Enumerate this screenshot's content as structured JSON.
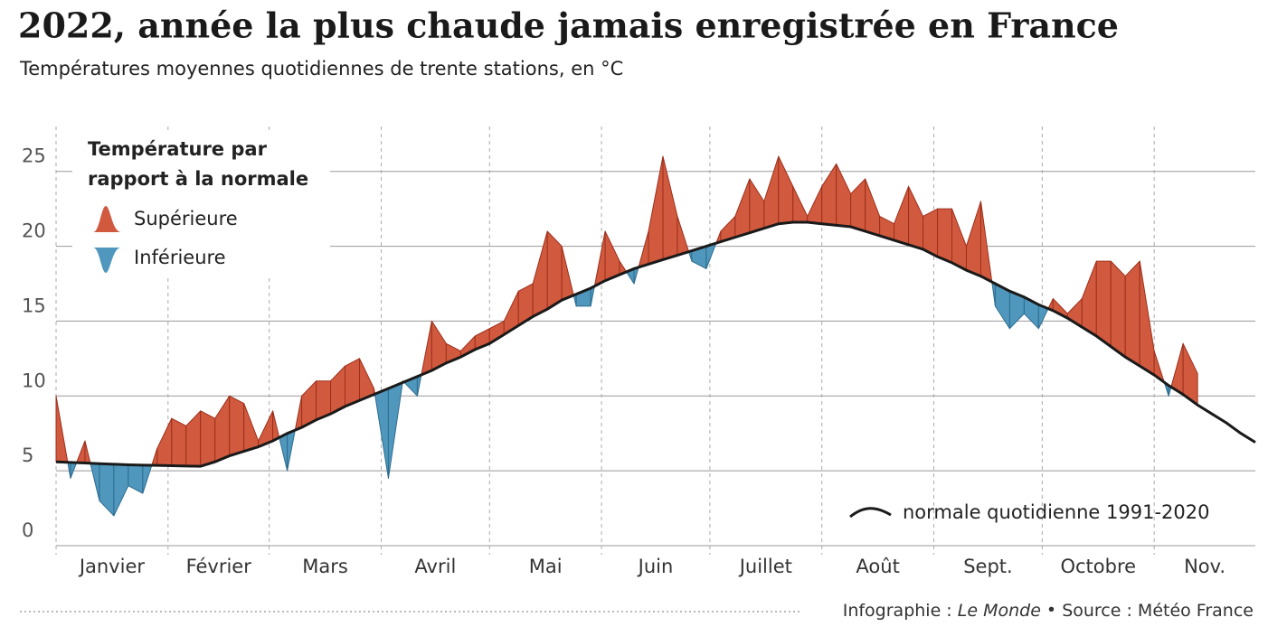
{
  "chart_data": {
    "type": "area-diff",
    "title": "2022, année la plus chaude jamais enregistrée en France",
    "subtitle": "Températures moyennes quotidiennes de trente stations, en °C",
    "legend_title": [
      "Température par",
      "rapport à la normale"
    ],
    "fill_legend": [
      {
        "label": "Supérieure",
        "color": "#d15a3e"
      },
      {
        "label": "Inférieure",
        "color": "#4f97bd"
      }
    ],
    "x": [
      1,
      5,
      9,
      13,
      17,
      21,
      25,
      29,
      33,
      37,
      41,
      45,
      49,
      53,
      57,
      61,
      65,
      69,
      73,
      77,
      81,
      85,
      89,
      93,
      97,
      101,
      105,
      109,
      113,
      117,
      121,
      125,
      129,
      133,
      137,
      141,
      145,
      149,
      153,
      157,
      161,
      165,
      169,
      173,
      177,
      181,
      185,
      189,
      193,
      197,
      201,
      205,
      209,
      213,
      217,
      221,
      225,
      229,
      233,
      237,
      241,
      245,
      249,
      253,
      257,
      261,
      265,
      269,
      273,
      277,
      281,
      285,
      289,
      293,
      297,
      301,
      305,
      309,
      313,
      317,
      321,
      325,
      329,
      333
    ],
    "xlim": [
      1,
      333
    ],
    "xticks": [
      {
        "value": 1,
        "label": "Janvier"
      },
      {
        "value": 32,
        "label": "Février"
      },
      {
        "value": 60,
        "label": "Mars"
      },
      {
        "value": 91,
        "label": "Avril"
      },
      {
        "value": 121,
        "label": "Mai"
      },
      {
        "value": 152,
        "label": "Juin"
      },
      {
        "value": 182,
        "label": "Juillet"
      },
      {
        "value": 213,
        "label": "Août"
      },
      {
        "value": 244,
        "label": "Sept."
      },
      {
        "value": 274,
        "label": "Octobre"
      },
      {
        "value": 305,
        "label": "Nov."
      }
    ],
    "ylim": [
      0,
      28
    ],
    "yticks": [
      0,
      5,
      10,
      15,
      20,
      25
    ],
    "grid": true,
    "series": [
      {
        "above_color": "#d15a3e",
        "below_color": "#4f97bd",
        "values": [
          10,
          4.5,
          7,
          3,
          2,
          4,
          3.5,
          6.5,
          8.5,
          8,
          9,
          8.5,
          10,
          9.5,
          7,
          9,
          5,
          10,
          11,
          11,
          12,
          12.5,
          10.5,
          4.5,
          11,
          10,
          15,
          13.5,
          13,
          14,
          14.5,
          15,
          17,
          17.5,
          21,
          20,
          16,
          16,
          21,
          19,
          17.5,
          21,
          26,
          22,
          19,
          18.5,
          21,
          22,
          24.5,
          23,
          26,
          24,
          22,
          24,
          25.5,
          23.5,
          24.5,
          22,
          21.5,
          24,
          22,
          22.5,
          22.5,
          20,
          23,
          16,
          14.5,
          15.5,
          14.5,
          16.5,
          15.5,
          16.5,
          19,
          19,
          18,
          19,
          13,
          10,
          13.5,
          11.5,
          null,
          null,
          null,
          null
        ]
      },
      {
        "name": "normale quotidienne 1991-2020",
        "color": "#1a1a1a",
        "values": [
          5.6,
          5.56,
          5.52,
          5.48,
          5.44,
          5.4,
          5.38,
          5.36,
          5.34,
          5.32,
          5.3,
          5.6,
          6.0,
          6.3,
          6.6,
          7.0,
          7.5,
          7.9,
          8.4,
          8.8,
          9.3,
          9.7,
          10.1,
          10.5,
          10.9,
          11.3,
          11.7,
          12.2,
          12.6,
          13.1,
          13.5,
          14.1,
          14.7,
          15.3,
          15.8,
          16.4,
          16.8,
          17.2,
          17.7,
          18.1,
          18.5,
          18.8,
          19.1,
          19.4,
          19.7,
          20.0,
          20.3,
          20.6,
          20.9,
          21.2,
          21.5,
          21.6,
          21.6,
          21.5,
          21.4,
          21.3,
          21.0,
          20.7,
          20.4,
          20.1,
          19.8,
          19.3,
          18.9,
          18.4,
          18.0,
          17.5,
          17.0,
          16.6,
          16.1,
          15.7,
          15.2,
          14.6,
          14.0,
          13.3,
          12.6,
          12.0,
          11.4,
          10.7,
          10.1,
          9.4,
          8.8,
          8.2,
          7.5,
          6.9
        ]
      }
    ],
    "credit": "Infographie :",
    "credit_outlet": "Le Monde",
    "source": "Source : Météo France"
  }
}
